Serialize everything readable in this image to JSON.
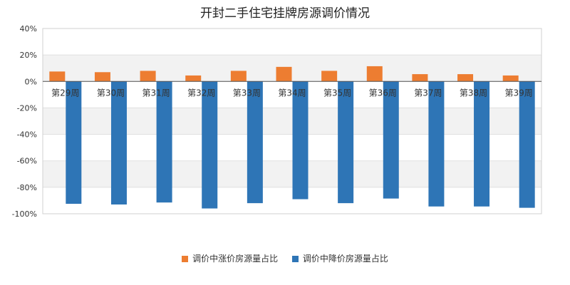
{
  "chart_data": {
    "type": "bar",
    "title": "开封二手住宅挂牌房源调价情况",
    "categories": [
      "第29周",
      "第30周",
      "第31周",
      "第32周",
      "第33周",
      "第34周",
      "第35周",
      "第36周",
      "第37周",
      "第38周",
      "第39周"
    ],
    "series": [
      {
        "name": "调价中涨价房源量占比",
        "color": "#ed7d31",
        "values": [
          7.5,
          7.0,
          8.0,
          4.5,
          8.0,
          11.0,
          8.0,
          11.5,
          5.5,
          5.5,
          4.5
        ]
      },
      {
        "name": "调价中降价房源量占比",
        "color": "#2e75b6",
        "values": [
          -92.5,
          -93.0,
          -91.5,
          -96.0,
          -92.0,
          -89.0,
          -92.0,
          -88.5,
          -94.5,
          -94.5,
          -95.5
        ]
      }
    ],
    "ylim": [
      -100,
      40
    ],
    "yticks": [
      40,
      20,
      0,
      -20,
      -40,
      -60,
      -80,
      -100
    ],
    "ytick_labels": [
      "40%",
      "20%",
      "0%",
      "-20%",
      "-40%",
      "-60%",
      "-80%",
      "-100%"
    ],
    "grid": true,
    "legend_position": "bottom"
  }
}
